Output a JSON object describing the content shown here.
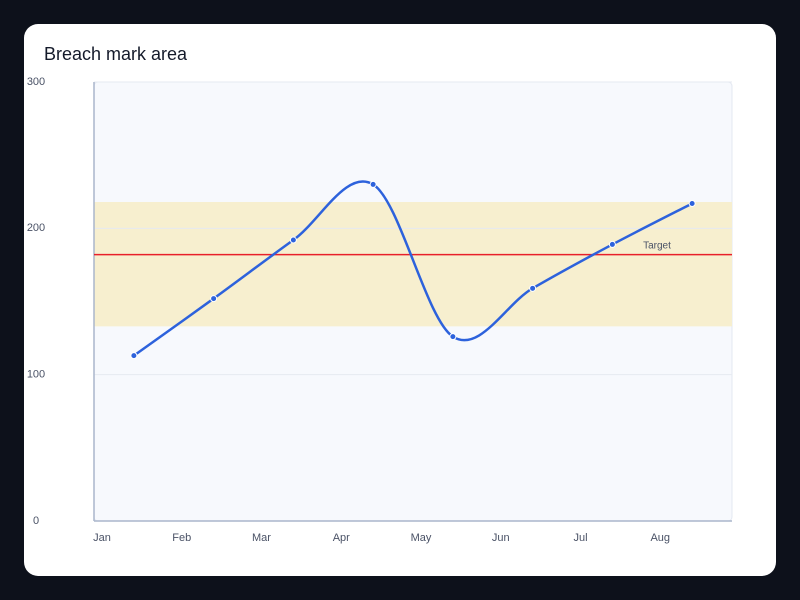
{
  "chart_data": {
    "type": "line",
    "title": "Breach mark area",
    "categories": [
      "Jan",
      "Feb",
      "Mar",
      "Apr",
      "May",
      "Jun",
      "Jul",
      "Aug"
    ],
    "values": [
      113,
      152,
      192,
      230,
      126,
      159,
      189,
      217
    ],
    "color": "#2d62dc",
    "ylim": [
      0,
      300
    ],
    "yticks": [
      0,
      100,
      200,
      300
    ],
    "grid": true,
    "mark_area": {
      "range": [
        133,
        218
      ],
      "color": "#f7efcf"
    },
    "target": {
      "label": "Target",
      "value": 182,
      "color": "#e8202a"
    }
  }
}
